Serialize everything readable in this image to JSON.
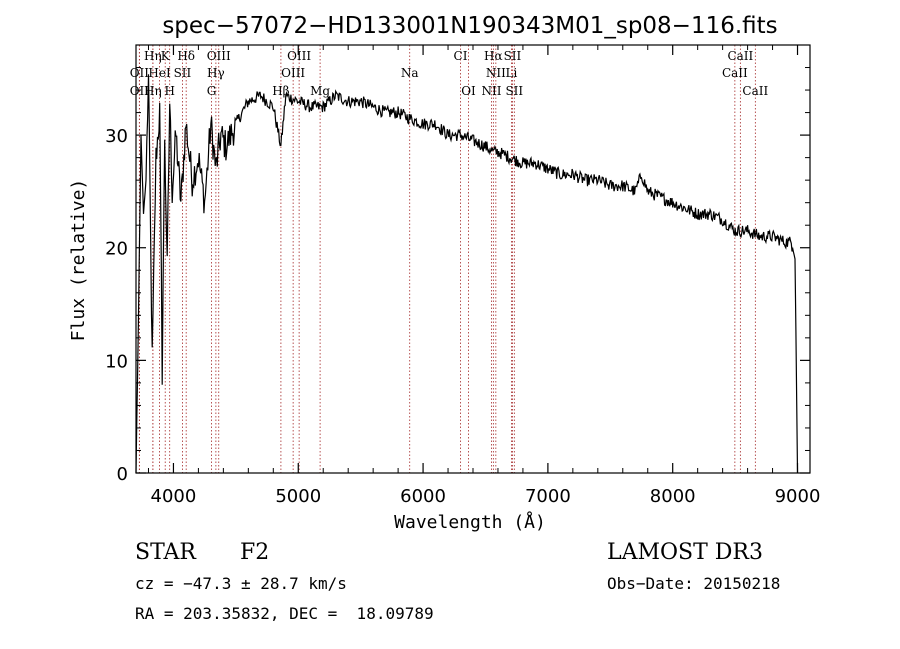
{
  "chart_data": {
    "type": "line",
    "title": "spec−57072−HD133001N190343M01_sp08−116.fits",
    "xlabel": "Wavelength (Å)",
    "ylabel": "Flux (relative)",
    "xlim": [
      3700,
      9100
    ],
    "ylim": [
      0,
      38
    ],
    "xticks": [
      4000,
      5000,
      6000,
      7000,
      8000,
      9000
    ],
    "yticks": [
      0,
      10,
      20,
      30
    ],
    "xtick_labels": [
      "4000",
      "5000",
      "6000",
      "7000",
      "8000",
      "9000"
    ],
    "ytick_labels": [
      "0",
      "10",
      "20",
      "30"
    ],
    "series": [
      {
        "name": "spectrum",
        "x": [
          3700,
          3720,
          3740,
          3760,
          3780,
          3800,
          3830,
          3860,
          3890,
          3910,
          3930,
          3950,
          3970,
          3990,
          4020,
          4060,
          4100,
          4150,
          4200,
          4250,
          4300,
          4340,
          4380,
          4420,
          4500,
          4600,
          4700,
          4800,
          4861,
          4900,
          5000,
          5100,
          5200,
          5300,
          5400,
          5500,
          5600,
          5700,
          5800,
          5890,
          6000,
          6100,
          6200,
          6300,
          6400,
          6500,
          6563,
          6600,
          6700,
          6800,
          6900,
          7000,
          7100,
          7200,
          7300,
          7400,
          7500,
          7600,
          7700,
          7750,
          7800,
          7900,
          8000,
          8100,
          8200,
          8300,
          8400,
          8500,
          8600,
          8700,
          8800,
          8900,
          8950,
          8980,
          9000
        ],
        "y": [
          0,
          14,
          30,
          23,
          26,
          35,
          10,
          28,
          32,
          9,
          30,
          18,
          33,
          25,
          30,
          24,
          31,
          26,
          28,
          24,
          31,
          27,
          30,
          29,
          31,
          33,
          33.5,
          32.5,
          29,
          33.5,
          33,
          32.5,
          32.5,
          33.5,
          33,
          33,
          32.5,
          32,
          32,
          31.5,
          31,
          31,
          30,
          30,
          29.5,
          29,
          28.5,
          28.5,
          28,
          27.5,
          27.5,
          27,
          26.5,
          26.5,
          26,
          26,
          25.5,
          25.5,
          25,
          26.5,
          25,
          24.5,
          24,
          23.5,
          23,
          23,
          22.5,
          21.5,
          21.5,
          21,
          21,
          20.5,
          20.5,
          19,
          0
        ]
      }
    ],
    "lines": [
      {
        "label": "Hη",
        "x": 3835,
        "row": 0
      },
      {
        "label": "K",
        "x": 3934,
        "row": 0
      },
      {
        "label": "Hδ",
        "x": 4102,
        "row": 0
      },
      {
        "label": "OIII",
        "x": 4363,
        "row": 0
      },
      {
        "label": "OIII",
        "x": 5007,
        "row": 0
      },
      {
        "label": "CI",
        "x": 6300,
        "row": 0
      },
      {
        "label": "Hα",
        "x": 6563,
        "row": 0
      },
      {
        "label": "SII",
        "x": 6716,
        "row": 0
      },
      {
        "label": "CaII",
        "x": 8542,
        "row": 0
      },
      {
        "label": "OII",
        "x": 3727,
        "row": 1
      },
      {
        "label": "HeI",
        "x": 3889,
        "row": 1
      },
      {
        "label": "SII",
        "x": 4072,
        "row": 1
      },
      {
        "label": "Hγ",
        "x": 4340,
        "row": 1
      },
      {
        "label": "OIII",
        "x": 4959,
        "row": 1
      },
      {
        "label": "Na",
        "x": 5893,
        "row": 1
      },
      {
        "label": "NII",
        "x": 6583,
        "row": 1
      },
      {
        "label": "Li",
        "x": 6708,
        "row": 1
      },
      {
        "label": "CaII",
        "x": 8498,
        "row": 1
      },
      {
        "label": "OII",
        "x": 3727,
        "row": 2
      },
      {
        "label": "Hη",
        "x": 3835,
        "row": 2
      },
      {
        "label": "H",
        "x": 3970,
        "row": 2
      },
      {
        "label": "G",
        "x": 4305,
        "row": 2
      },
      {
        "label": "Hβ",
        "x": 4861,
        "row": 2
      },
      {
        "label": "Mg",
        "x": 5175,
        "row": 2
      },
      {
        "label": "OI",
        "x": 6364,
        "row": 2
      },
      {
        "label": "NII",
        "x": 6548,
        "row": 2
      },
      {
        "label": "SII",
        "x": 6731,
        "row": 2
      },
      {
        "label": "CaII",
        "x": 8662,
        "row": 2
      }
    ],
    "line_color": "#a52a2a",
    "curve_color": "#000000"
  },
  "info": {
    "object_type": "STAR",
    "subclass": "F2",
    "survey": "LAMOST DR3",
    "redshift": "cz = −47.3 ± 28.7 km/s",
    "obs_date": "Obs−Date: 20150218",
    "coords": "RA = 203.35832, DEC =  18.09789"
  }
}
